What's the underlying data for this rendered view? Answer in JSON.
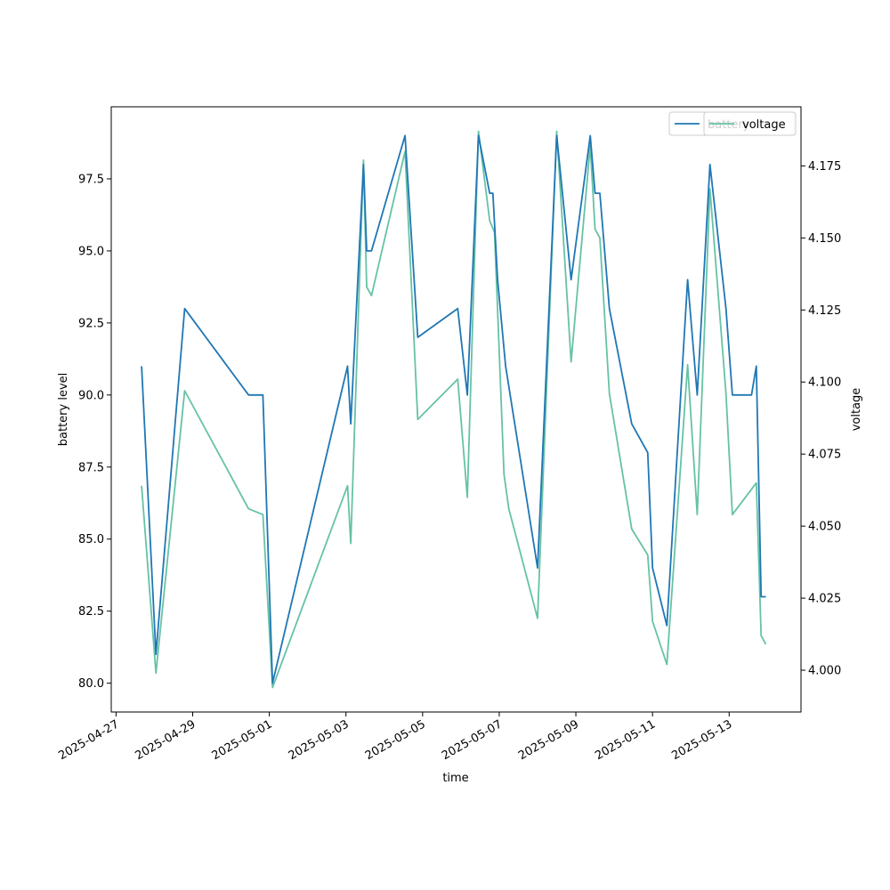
{
  "chart_data": {
    "type": "line",
    "xlabel": "time",
    "ylabel": "battery level",
    "y2label": "voltage",
    "xlim": [
      "2025-04-26T21:00",
      "2025-05-14T21:00"
    ],
    "ylim": [
      79.0,
      100.0
    ],
    "y2lim": [
      3.9855,
      4.1955
    ],
    "x_ticks": [
      "2025-04-27",
      "2025-04-29",
      "2025-05-01",
      "2025-05-03",
      "2025-05-05",
      "2025-05-07",
      "2025-05-09",
      "2025-05-11",
      "2025-05-13"
    ],
    "y_ticks": [
      "80.0",
      "82.5",
      "85.0",
      "87.5",
      "90.0",
      "92.5",
      "95.0",
      "97.5"
    ],
    "y2_ticks": [
      "4.000",
      "4.025",
      "4.050",
      "4.075",
      "4.100",
      "4.125",
      "4.150",
      "4.175"
    ],
    "grid": false,
    "legend_position": "upper-right",
    "colors": {
      "battery": "#1f77b4",
      "voltage": "#66c2a5"
    },
    "series": [
      {
        "name": "battery",
        "axis": "left",
        "points": [
          [
            "2025-04-27T16:00",
            91
          ],
          [
            "2025-04-28T01:00",
            81
          ],
          [
            "2025-04-28T19:00",
            93
          ],
          [
            "2025-04-30T11:00",
            90
          ],
          [
            "2025-04-30T20:00",
            90
          ],
          [
            "2025-05-01T02:00",
            80
          ],
          [
            "2025-05-03T01:00",
            91
          ],
          [
            "2025-05-03T03:00",
            89
          ],
          [
            "2025-05-03T11:00",
            98
          ],
          [
            "2025-05-03T13:00",
            95
          ],
          [
            "2025-05-03T16:00",
            95
          ],
          [
            "2025-05-04T13:00",
            99
          ],
          [
            "2025-05-04T21:00",
            92
          ],
          [
            "2025-05-05T22:00",
            93
          ],
          [
            "2025-05-06T04:00",
            90
          ],
          [
            "2025-05-06T11:00",
            99
          ],
          [
            "2025-05-06T18:00",
            97
          ],
          [
            "2025-05-06T20:00",
            97
          ],
          [
            "2025-05-06T23:00",
            94
          ],
          [
            "2025-05-07T04:00",
            91
          ],
          [
            "2025-05-08T00:00",
            84
          ],
          [
            "2025-05-08T12:00",
            99
          ],
          [
            "2025-05-08T21:00",
            94
          ],
          [
            "2025-05-09T09:00",
            99
          ],
          [
            "2025-05-09T12:00",
            97
          ],
          [
            "2025-05-09T15:00",
            97
          ],
          [
            "2025-05-09T21:00",
            93
          ],
          [
            "2025-05-10T11:00",
            89
          ],
          [
            "2025-05-10T21:00",
            88
          ],
          [
            "2025-05-11T00:00",
            84
          ],
          [
            "2025-05-11T09:00",
            82
          ],
          [
            "2025-05-11T22:00",
            94
          ],
          [
            "2025-05-12T04:00",
            90
          ],
          [
            "2025-05-12T12:00",
            98
          ],
          [
            "2025-05-12T22:00",
            93
          ],
          [
            "2025-05-13T02:00",
            90
          ],
          [
            "2025-05-13T14:00",
            90
          ],
          [
            "2025-05-13T17:00",
            91
          ],
          [
            "2025-05-13T20:00",
            83
          ],
          [
            "2025-05-13T23:00",
            83
          ]
        ]
      },
      {
        "name": "voltage",
        "axis": "right",
        "points": [
          [
            "2025-04-27T16:00",
            4.064
          ],
          [
            "2025-04-28T01:00",
            3.999
          ],
          [
            "2025-04-28T19:00",
            4.097
          ],
          [
            "2025-04-30T11:00",
            4.056
          ],
          [
            "2025-04-30T20:00",
            4.054
          ],
          [
            "2025-05-01T02:00",
            3.994
          ],
          [
            "2025-05-03T01:00",
            4.064
          ],
          [
            "2025-05-03T03:00",
            4.044
          ],
          [
            "2025-05-03T11:00",
            4.177
          ],
          [
            "2025-05-03T13:00",
            4.133
          ],
          [
            "2025-05-03T16:00",
            4.13
          ],
          [
            "2025-05-04T13:00",
            4.18
          ],
          [
            "2025-05-04T21:00",
            4.087
          ],
          [
            "2025-05-05T22:00",
            4.101
          ],
          [
            "2025-05-06T04:00",
            4.06
          ],
          [
            "2025-05-06T11:00",
            4.187
          ],
          [
            "2025-05-06T18:00",
            4.156
          ],
          [
            "2025-05-06T21:00",
            4.152
          ],
          [
            "2025-05-06T23:00",
            4.125
          ],
          [
            "2025-05-07T03:00",
            4.068
          ],
          [
            "2025-05-07T06:00",
            4.056
          ],
          [
            "2025-05-08T00:00",
            4.018
          ],
          [
            "2025-05-08T12:00",
            4.187
          ],
          [
            "2025-05-08T21:00",
            4.107
          ],
          [
            "2025-05-09T09:00",
            4.182
          ],
          [
            "2025-05-09T12:00",
            4.153
          ],
          [
            "2025-05-09T15:00",
            4.15
          ],
          [
            "2025-05-09T21:00",
            4.096
          ],
          [
            "2025-05-10T11:00",
            4.049
          ],
          [
            "2025-05-10T21:00",
            4.04
          ],
          [
            "2025-05-11T00:00",
            4.017
          ],
          [
            "2025-05-11T09:00",
            4.002
          ],
          [
            "2025-05-11T22:00",
            4.106
          ],
          [
            "2025-05-12T04:00",
            4.054
          ],
          [
            "2025-05-12T12:00",
            4.167
          ],
          [
            "2025-05-12T22:00",
            4.096
          ],
          [
            "2025-05-13T02:00",
            4.054
          ],
          [
            "2025-05-13T17:00",
            4.065
          ],
          [
            "2025-05-13T20:00",
            4.012
          ],
          [
            "2025-05-13T23:00",
            4.009
          ]
        ]
      }
    ]
  }
}
